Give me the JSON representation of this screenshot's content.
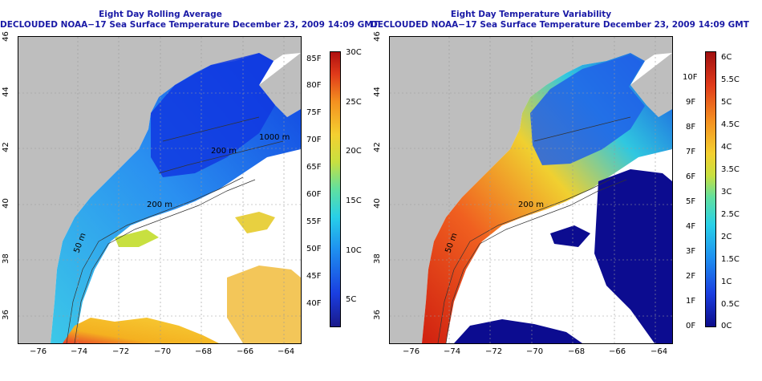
{
  "left_panel": {
    "title_line1": "Eight Day Rolling Average",
    "title_line2": "DECLOUDED NOAA−17 Sea Surface Temperature December 23, 2009 14:09 GMT",
    "x_ticks": [
      "−76",
      "−74",
      "−72",
      "−70",
      "−68",
      "−66",
      "−64"
    ],
    "y_ticks": [
      "36",
      "38",
      "40",
      "42",
      "44",
      "46"
    ],
    "contour_labels": [
      "1000 m",
      "200 m",
      "200 m",
      "50 m"
    ],
    "colorbar": {
      "f_labels": [
        "85F",
        "80F",
        "75F",
        "70F",
        "65F",
        "60F",
        "55F",
        "50F",
        "45F",
        "40F"
      ],
      "c_labels": [
        "30C",
        "25C",
        "20C",
        "15C",
        "10C",
        "5C"
      ]
    }
  },
  "right_panel": {
    "title_line1": "Eight Day Temperature Variability",
    "title_line2": "DECLOUDED NOAA−17 Sea Surface Temperature December 23, 2009 14:09 GMT",
    "x_ticks": [
      "−76",
      "−74",
      "−72",
      "−70",
      "−68",
      "−66",
      "−64"
    ],
    "y_ticks": [
      "36",
      "38",
      "40",
      "42",
      "44",
      "46"
    ],
    "contour_labels": [
      "200 m",
      "50 m"
    ],
    "colorbar": {
      "f_labels": [
        "10F",
        "9F",
        "8F",
        "7F",
        "6F",
        "5F",
        "4F",
        "3F",
        "2F",
        "1F",
        "0F"
      ],
      "c_labels": [
        "6C",
        "5.5C",
        "5C",
        "4.5C",
        "4C",
        "3.5C",
        "3C",
        "2.5C",
        "2C",
        "1.5C",
        "1C",
        "0.5C",
        "0C"
      ]
    }
  },
  "colors": {
    "land": "#bebebe",
    "title": "#1a1aa6",
    "no_data": "#ffffff"
  }
}
